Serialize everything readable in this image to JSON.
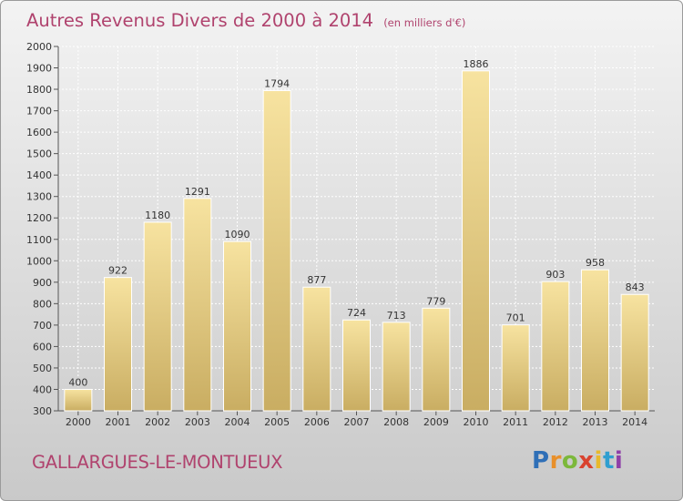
{
  "header": {
    "title": "Autres Revenus Divers de 2000 à 2014",
    "unit": "(en milliers d'€)"
  },
  "footer": {
    "commune": "GALLARGUES-LE-MONTUEUX",
    "logo": "Proxiti"
  },
  "colors": {
    "accent": "#b0436e",
    "bar_light": "#f7e3a0",
    "bar_dark": "#c9ad62"
  },
  "chart_data": {
    "type": "bar",
    "title": "Autres Revenus Divers de 2000 à 2014",
    "subtitle": "(en milliers d'€)",
    "categories": [
      "2000",
      "2001",
      "2002",
      "2003",
      "2004",
      "2005",
      "2006",
      "2007",
      "2008",
      "2009",
      "2010",
      "2011",
      "2012",
      "2013",
      "2014"
    ],
    "values": [
      400,
      922,
      1180,
      1291,
      1090,
      1794,
      877,
      724,
      713,
      779,
      1886,
      701,
      903,
      958,
      843
    ],
    "ylim": [
      300,
      2000
    ],
    "ytick_step": 100,
    "grid": true,
    "xlabel": "",
    "ylabel": ""
  }
}
